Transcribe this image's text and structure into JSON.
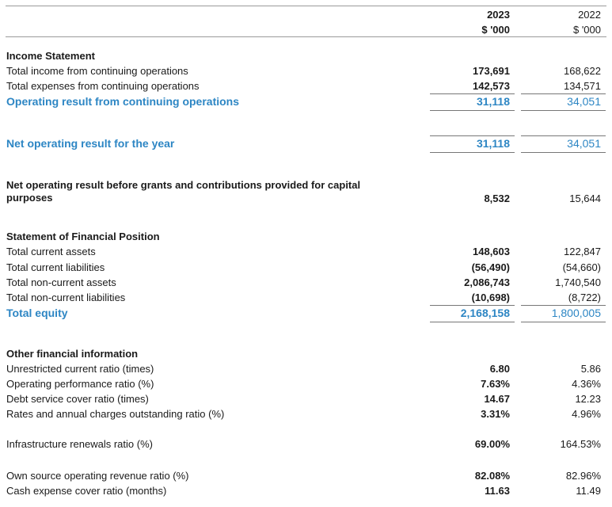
{
  "header": {
    "year_2023": "2023",
    "unit_2023": "$ '000",
    "year_2022": "2022",
    "unit_2022": "$ '000"
  },
  "income_statement": {
    "heading": "Income Statement",
    "rows": [
      {
        "label": "Total income from continuing operations",
        "v2023": "173,691",
        "v2022": "168,622"
      },
      {
        "label": "Total expenses from continuing operations",
        "v2023": "142,573",
        "v2022": "134,571"
      },
      {
        "label": "Operating result from continuing operations",
        "v2023": "31,118",
        "v2022": "34,051"
      }
    ]
  },
  "net_result": {
    "label": "Net operating result for the year",
    "v2023": "31,118",
    "v2022": "34,051"
  },
  "net_before_grants": {
    "label": "Net operating result before grants and contributions provided for capital purposes",
    "v2023": "8,532",
    "v2022": "15,644"
  },
  "financial_position": {
    "heading": "Statement of Financial Position",
    "rows": [
      {
        "label": "Total current assets",
        "v2023": "148,603",
        "v2022": "122,847"
      },
      {
        "label": "Total current liabilities",
        "v2023": "(56,490)",
        "v2022": "(54,660)"
      },
      {
        "label": "Total non-current assets",
        "v2023": "2,086,743",
        "v2022": "1,740,540"
      },
      {
        "label": "Total non-current liabilities",
        "v2023": "(10,698)",
        "v2022": "(8,722)"
      },
      {
        "label": "Total equity",
        "v2023": "2,168,158",
        "v2022": "1,800,005"
      }
    ]
  },
  "other_info": {
    "heading": "Other financial information",
    "rows": [
      {
        "label": "Unrestricted current ratio (times)",
        "v2023": "6.80",
        "v2022": "5.86"
      },
      {
        "label": "Operating performance ratio (%)",
        "v2023": "7.63%",
        "v2022": "4.36%"
      },
      {
        "label": "Debt service cover ratio (times)",
        "v2023": "14.67",
        "v2022": "12.23"
      },
      {
        "label": "Rates and annual charges outstanding ratio (%)",
        "v2023": "3.31%",
        "v2022": "4.96%"
      },
      {
        "label": "Infrastructure renewals ratio (%)",
        "v2023": "69.00%",
        "v2022": "164.53%"
      },
      {
        "label": "Own source operating revenue ratio (%)",
        "v2023": "82.08%",
        "v2022": "82.96%"
      },
      {
        "label": "Cash expense cover ratio (months)",
        "v2023": "11.63",
        "v2022": "11.49"
      }
    ]
  }
}
